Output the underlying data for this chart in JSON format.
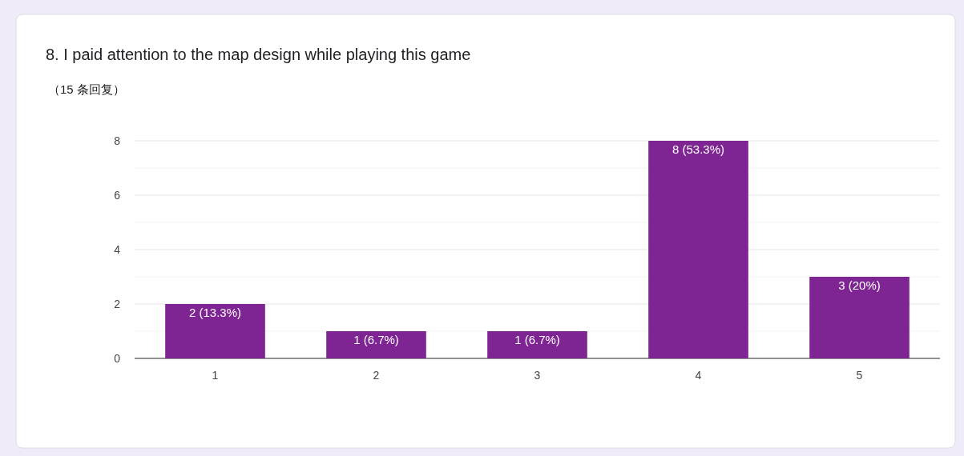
{
  "chart_data": {
    "type": "bar",
    "title": "8. I paid attention to the map design while playing this game",
    "subtitle": "（15 条回复）",
    "categories": [
      "1",
      "2",
      "3",
      "4",
      "5"
    ],
    "values": [
      2,
      1,
      1,
      8,
      3
    ],
    "color": "#7f2493",
    "value_labels": [
      "2 (13.3%)",
      "1 (6.7%)",
      "1 (6.7%)",
      "8 (53.3%)",
      "3 (20%)"
    ],
    "ylim": [
      0,
      8
    ],
    "yticks": [
      0,
      {
        "value": 1,
        "label": null
      },
      2,
      {
        "value": 3,
        "label": null
      },
      4,
      {
        "value": 5,
        "label": null
      },
      6,
      {
        "value": 7,
        "label": null
      },
      8
    ],
    "grid": "y"
  }
}
